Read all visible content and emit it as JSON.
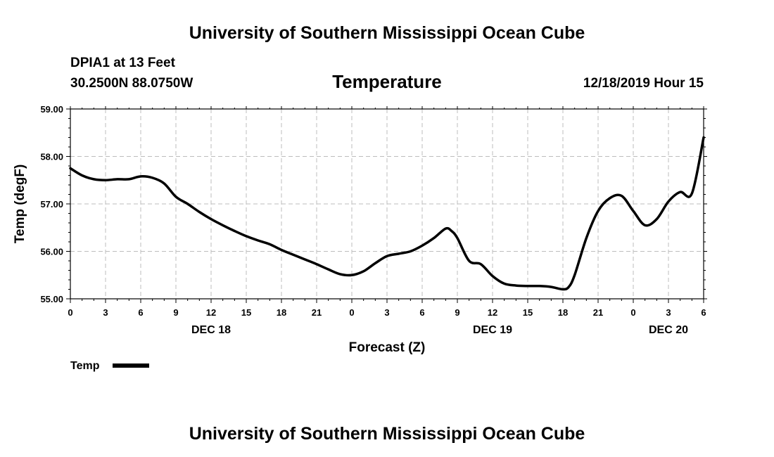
{
  "chart_data": {
    "type": "line",
    "title": "University of Southern Mississippi Ocean Cube",
    "footer": "University of Southern Mississippi Ocean Cube",
    "station": "DPIA1 at 13 Feet",
    "location": "30.2500N 88.0750W",
    "variable": "Temperature",
    "issued": "12/18/2019 Hour 15",
    "xlabel": "Forecast (Z)",
    "ylabel": "Temp (degF)",
    "xlim": [
      0,
      54
    ],
    "ylim": [
      55,
      59
    ],
    "grid": true,
    "x_tick_values": [
      0,
      3,
      6,
      9,
      12,
      15,
      18,
      21,
      24,
      27,
      30,
      33,
      36,
      39,
      42,
      45,
      48,
      51,
      54
    ],
    "x_tick_labels": [
      "0",
      "3",
      "6",
      "9",
      "12",
      "15",
      "18",
      "21",
      "0",
      "3",
      "6",
      "9",
      "12",
      "15",
      "18",
      "21",
      "0",
      "3",
      "6"
    ],
    "y_tick_values": [
      55,
      56,
      57,
      58,
      59
    ],
    "y_tick_labels": [
      "55.00",
      "56.00",
      "57.00",
      "58.00",
      "59.00"
    ],
    "day_labels": [
      {
        "x": 12,
        "label": "DEC 18"
      },
      {
        "x": 36,
        "label": "DEC 19"
      },
      {
        "x": 51,
        "label": "DEC 20"
      }
    ],
    "legend": "Temp",
    "legend_position": "bottom-left",
    "series": [
      {
        "name": "Temp",
        "color": "#000000",
        "x": [
          0,
          1,
          2,
          3,
          4,
          5,
          6,
          7,
          8,
          9,
          10,
          11,
          12,
          13,
          14,
          15,
          16,
          17,
          18,
          19,
          20,
          21,
          22,
          23,
          24,
          25,
          26,
          27,
          28,
          29,
          30,
          31,
          32,
          32.5,
          33,
          34,
          35,
          36,
          37,
          38,
          39,
          40,
          41,
          42,
          42.5,
          43,
          44,
          45,
          46,
          47,
          48,
          49,
          50,
          51,
          52,
          53,
          54
        ],
        "values": [
          57.75,
          57.6,
          57.52,
          57.5,
          57.52,
          57.52,
          57.58,
          57.55,
          57.43,
          57.15,
          57.0,
          56.83,
          56.68,
          56.55,
          56.43,
          56.32,
          56.23,
          56.15,
          56.03,
          55.93,
          55.83,
          55.73,
          55.62,
          55.52,
          55.5,
          55.58,
          55.75,
          55.9,
          55.95,
          56.0,
          56.12,
          56.28,
          56.48,
          56.43,
          56.28,
          55.8,
          55.73,
          55.48,
          55.32,
          55.28,
          55.27,
          55.27,
          55.25,
          55.2,
          55.25,
          55.5,
          56.28,
          56.85,
          57.12,
          57.17,
          56.85,
          56.55,
          56.68,
          57.05,
          57.25,
          57.22,
          58.4
        ]
      }
    ]
  }
}
